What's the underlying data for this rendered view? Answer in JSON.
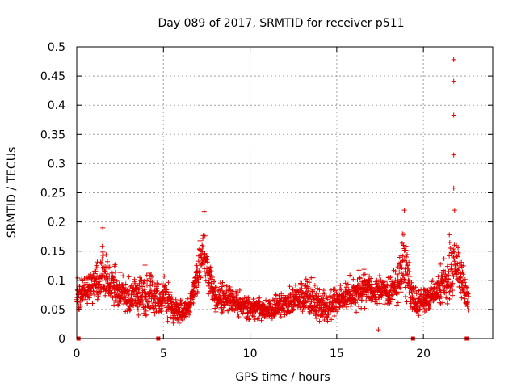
{
  "chart_data": {
    "type": "scatter",
    "title": "Day 089 of 2017, SRMTID for receiver p511",
    "xlabel": "GPS time / hours",
    "ylabel": "SRMTID / TECUs",
    "xlim": [
      0,
      24
    ],
    "ylim": [
      0,
      0.5
    ],
    "x_ticks": [
      0,
      5,
      10,
      15,
      20
    ],
    "x_tick_labels": [
      "0",
      "5",
      "10",
      "15",
      "20"
    ],
    "y_ticks": [
      0,
      0.05,
      0.1,
      0.15,
      0.2,
      0.25,
      0.3,
      0.35,
      0.4,
      0.45,
      0.5
    ],
    "y_tick_labels": [
      "0",
      "0.05",
      "0.1",
      "0.15",
      "0.2",
      "0.25",
      "0.3",
      "0.35",
      "0.4",
      "0.45",
      "0.5"
    ],
    "grid": true,
    "marker": "+",
    "color": "#e00000",
    "series": [
      {
        "name": "SRMTID",
        "envelope": {
          "x": [
            0.0,
            0.5,
            1.0,
            1.5,
            2.0,
            2.5,
            3.0,
            3.5,
            4.0,
            4.5,
            4.8,
            5.0,
            5.5,
            6.0,
            6.5,
            7.0,
            7.3,
            7.6,
            8.0,
            8.5,
            9.0,
            9.5,
            10.0,
            10.5,
            11.0,
            11.5,
            12.0,
            12.5,
            13.0,
            13.5,
            14.0,
            14.5,
            15.0,
            15.5,
            16.0,
            16.5,
            17.0,
            17.5,
            18.0,
            18.5,
            18.9,
            19.3,
            19.6,
            20.0,
            20.5,
            21.0,
            21.4,
            21.6,
            21.8,
            22.0,
            22.3,
            22.6
          ],
          "low": [
            0.04,
            0.05,
            0.05,
            0.05,
            0.04,
            0.04,
            0.03,
            0.035,
            0.03,
            0.03,
            0.04,
            0.03,
            0.02,
            0.02,
            0.03,
            0.07,
            0.09,
            0.07,
            0.04,
            0.04,
            0.035,
            0.03,
            0.03,
            0.025,
            0.03,
            0.03,
            0.03,
            0.035,
            0.035,
            0.03,
            0.025,
            0.02,
            0.035,
            0.04,
            0.04,
            0.04,
            0.05,
            0.05,
            0.05,
            0.05,
            0.07,
            0.04,
            0.03,
            0.04,
            0.045,
            0.05,
            0.04,
            0.04,
            0.06,
            0.07,
            0.05,
            0.045
          ],
          "high": [
            0.11,
            0.12,
            0.13,
            0.19,
            0.16,
            0.13,
            0.12,
            0.12,
            0.14,
            0.13,
            0.1,
            0.14,
            0.09,
            0.08,
            0.08,
            0.17,
            0.22,
            0.18,
            0.11,
            0.1,
            0.1,
            0.09,
            0.08,
            0.08,
            0.07,
            0.08,
            0.09,
            0.1,
            0.11,
            0.12,
            0.1,
            0.09,
            0.1,
            0.11,
            0.12,
            0.13,
            0.12,
            0.12,
            0.12,
            0.14,
            0.22,
            0.12,
            0.1,
            0.1,
            0.11,
            0.14,
            0.15,
            0.48,
            0.18,
            0.19,
            0.14,
            0.09
          ],
          "approx_points": 2200
        },
        "outliers": [
          {
            "x": 21.75,
            "y": 0.478
          },
          {
            "x": 21.75,
            "y": 0.441
          },
          {
            "x": 21.75,
            "y": 0.383
          },
          {
            "x": 21.75,
            "y": 0.315
          },
          {
            "x": 21.75,
            "y": 0.258
          },
          {
            "x": 21.8,
            "y": 0.22
          },
          {
            "x": 18.9,
            "y": 0.22
          },
          {
            "x": 7.35,
            "y": 0.218
          },
          {
            "x": 1.5,
            "y": 0.19
          },
          {
            "x": 17.4,
            "y": 0.015
          }
        ]
      }
    ],
    "gap_markers": [
      {
        "x": 0.1,
        "y": 0
      },
      {
        "x": 4.7,
        "y": 0
      },
      {
        "x": 19.4,
        "y": 0
      },
      {
        "x": 22.5,
        "y": 0
      }
    ]
  }
}
